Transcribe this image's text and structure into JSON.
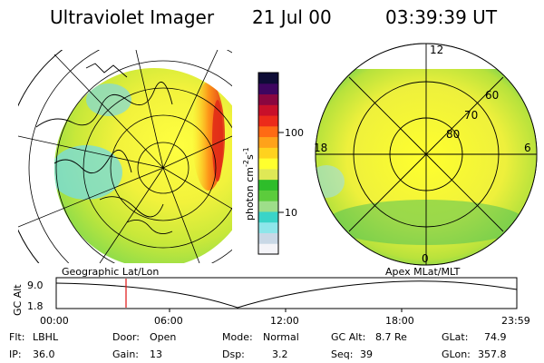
{
  "header": {
    "title": "Ultraviolet Imager",
    "date": "21 Jul 00",
    "time": "03:39:39 UT"
  },
  "colorbar": {
    "unit_label": "photon cm",
    "unit_exp1": "-2",
    "unit_s": "s",
    "unit_exp2": "-1",
    "ticks": [
      "100",
      "10"
    ],
    "colors": [
      "#f4f4f8",
      "#c9d8e6",
      "#8ee6ea",
      "#3ad4c8",
      "#9ede8a",
      "#5ccc3c",
      "#2ebd2a",
      "#dfe856",
      "#ffff2e",
      "#ffd21e",
      "#ffa21a",
      "#ff6a14",
      "#ec2b1a",
      "#c8102a",
      "#8a0640",
      "#3e0560",
      "#0e0c36"
    ]
  },
  "left_panel": {
    "label": "Geographic Lat/Lon"
  },
  "right_panel": {
    "label": "Apex MLat/MLT",
    "mlt_labels": [
      "12",
      "18",
      "6",
      "0"
    ],
    "lat_labels": [
      "60",
      "70",
      "80"
    ]
  },
  "timeline": {
    "ylabel": "GC Alt",
    "ytick_top": "9.0",
    "ytick_bottom": "1.8",
    "xticks": [
      "00:00",
      "06:00",
      "12:00",
      "18:00",
      "23:59"
    ],
    "marker_time": "03:39:39"
  },
  "info": {
    "flt_label": "Flt:",
    "flt_value": "LBHL",
    "ip_label": "IP:",
    "ip_value": "36.0",
    "door_label": "Door:",
    "door_value": "Open",
    "gain_label": "Gain:",
    "gain_value": "13",
    "mode_label": "Mode:",
    "mode_value": "Normal",
    "dsp_label": "Dsp:",
    "dsp_value": "3.2",
    "gcalt_label": "GC Alt:",
    "gcalt_value": "8.7 Re",
    "seq_label": "Seq:",
    "seq_value": "39",
    "glat_label": "GLat:",
    "glat_value": "74.9",
    "glon_label": "GLon:",
    "glon_value": "357.8"
  },
  "colors": {
    "marker": "#e01010",
    "frame": "#000000"
  }
}
